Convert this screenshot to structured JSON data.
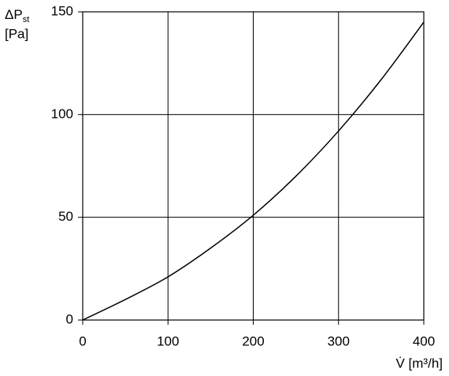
{
  "chart_data": {
    "type": "line",
    "y_label": {
      "symbol": "ΔP",
      "subscript": "st",
      "unit": "[Pa]"
    },
    "x_label": "V̇ [m³/h]",
    "x": [
      0,
      50,
      100,
      150,
      200,
      250,
      300,
      350,
      400
    ],
    "values": [
      0,
      10,
      21,
      35,
      51,
      70,
      92,
      117,
      145
    ],
    "color": "#000000",
    "xlim": [
      0,
      400
    ],
    "xticks": [
      0,
      100,
      200,
      300,
      400
    ],
    "ylim": [
      0,
      150
    ],
    "yticks": [
      0,
      50,
      100,
      150
    ],
    "grid": true
  }
}
